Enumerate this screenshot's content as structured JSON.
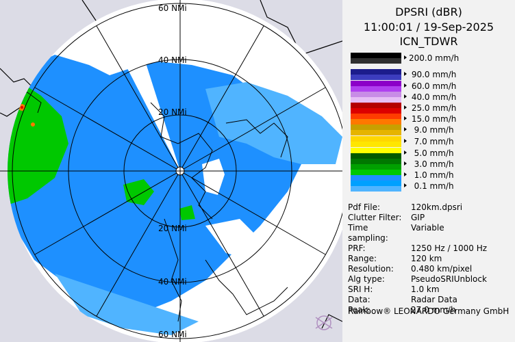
{
  "header": {
    "product": "DPSRI (dBR)",
    "datetime": "11:00:01 / 19-Sep-2025",
    "station": "ICN_TDWR"
  },
  "map": {
    "range_labels": [
      "60 NMi",
      "40 NMi",
      "20 NMi",
      "20 NMi",
      "40 NMi",
      "60 NMi"
    ]
  },
  "legend": [
    {
      "label": "200.0 mm/h",
      "colors": [
        "#000000",
        "#303030"
      ]
    },
    {
      "label": " 90.0 mm/h",
      "colors": [
        "#1c1c8c",
        "#3c3cbe"
      ]
    },
    {
      "label": " 60.0 mm/h",
      "colors": [
        "#8c00c8",
        "#b040f0"
      ]
    },
    {
      "label": " 40.0 mm/h",
      "colors": [
        "#c88ce6",
        "#e6bef5"
      ]
    },
    {
      "label": " 25.0 mm/h",
      "colors": [
        "#b40000",
        "#dc0000"
      ]
    },
    {
      "label": " 15.0 mm/h",
      "colors": [
        "#ff3c00",
        "#ff7800"
      ]
    },
    {
      "label": "  9.0 mm/h",
      "colors": [
        "#c8a000",
        "#e6b400"
      ]
    },
    {
      "label": "  7.0 mm/h",
      "colors": [
        "#ffd700",
        "#ffe600"
      ]
    },
    {
      "label": "  5.0 mm/h",
      "colors": [
        "#ffff00",
        "#005a00"
      ]
    },
    {
      "label": "  3.0 mm/h",
      "colors": [
        "#007800",
        "#00a000"
      ]
    },
    {
      "label": "  1.0 mm/h",
      "colors": [
        "#00c800",
        "#1e90ff"
      ]
    },
    {
      "label": "  0.1 mm/h",
      "colors": [
        "#00a0ff",
        "#50b4ff"
      ]
    }
  ],
  "info": [
    {
      "key": "Pdf File:",
      "value": "120km.dpsri"
    },
    {
      "key": "Clutter Filter:",
      "value": "GIP"
    },
    {
      "key": "Time sampling:",
      "value": "Variable"
    },
    {
      "key": "PRF:",
      "value": "1250 Hz / 1000 Hz"
    },
    {
      "key": "Range:",
      "value": "120 km"
    },
    {
      "key": "Resolution:",
      "value": "0.480 km/pixel"
    },
    {
      "key": "Alg type:",
      "value": "PseudoSRIUnblock"
    },
    {
      "key": "SRI H:",
      "value": "1.0 km"
    },
    {
      "key": "Data:",
      "value": "Radar Data"
    },
    {
      "key": "Peak:",
      "value": "27.0 mm/h"
    }
  ],
  "footer": "Rainbow® LEONARDO Germany GmbH",
  "colors": {
    "background_outside": "#dcdce6",
    "no_echo": "#ffffff",
    "light_rain": "#1e90ff",
    "moderate": "#00c800"
  }
}
